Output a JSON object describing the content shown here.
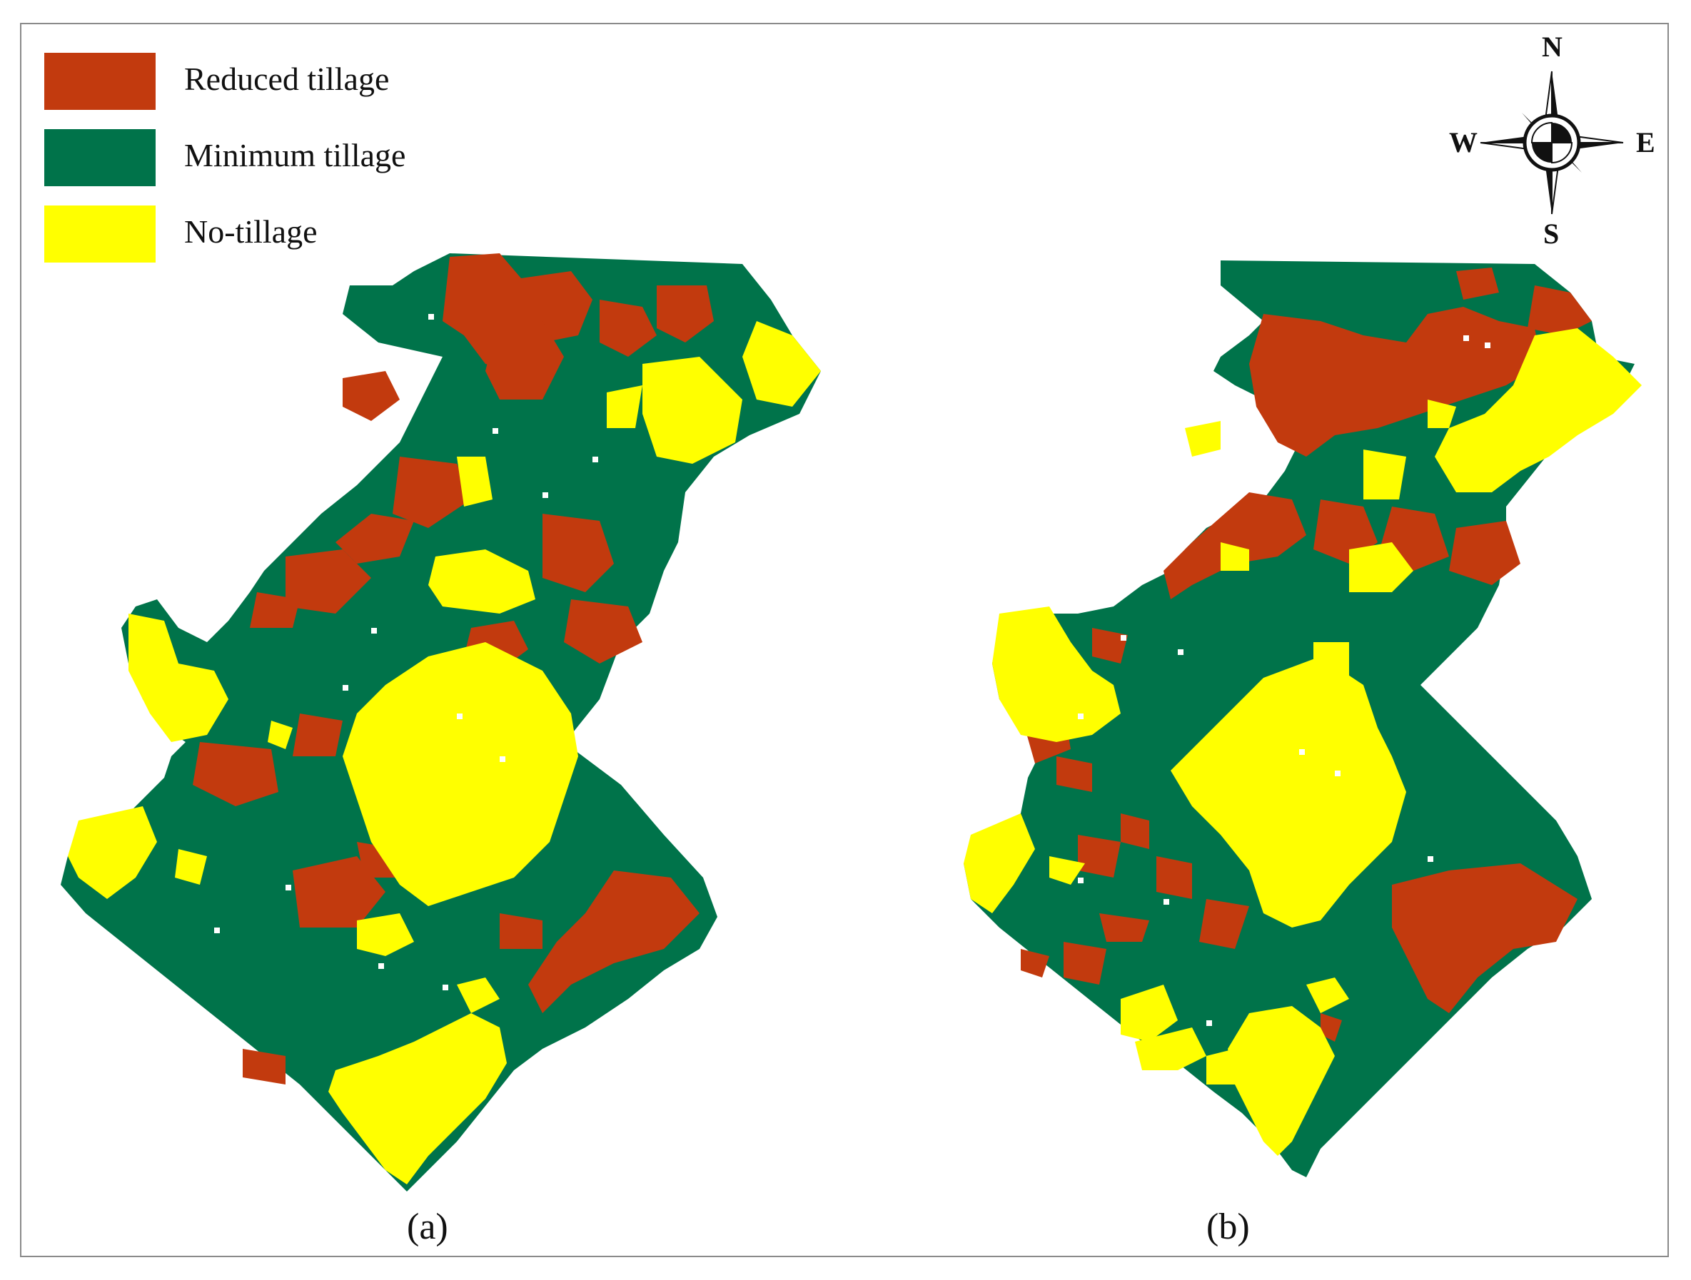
{
  "legend": {
    "items": [
      {
        "label": "Reduced tillage",
        "color": "#c23a0e"
      },
      {
        "label": "Minimum tillage",
        "color": "#00734a"
      },
      {
        "label": "No-tillage",
        "color": "#ffff00"
      }
    ]
  },
  "compass": {
    "north": "N",
    "south": "S",
    "east": "E",
    "west": "W"
  },
  "panels": [
    {
      "label": "(a)"
    },
    {
      "label": "(b)"
    }
  ],
  "colors": {
    "reduced": "#c23a0e",
    "minimum": "#00734a",
    "no_tillage": "#ffff00",
    "frame": "#8a8a8a"
  }
}
